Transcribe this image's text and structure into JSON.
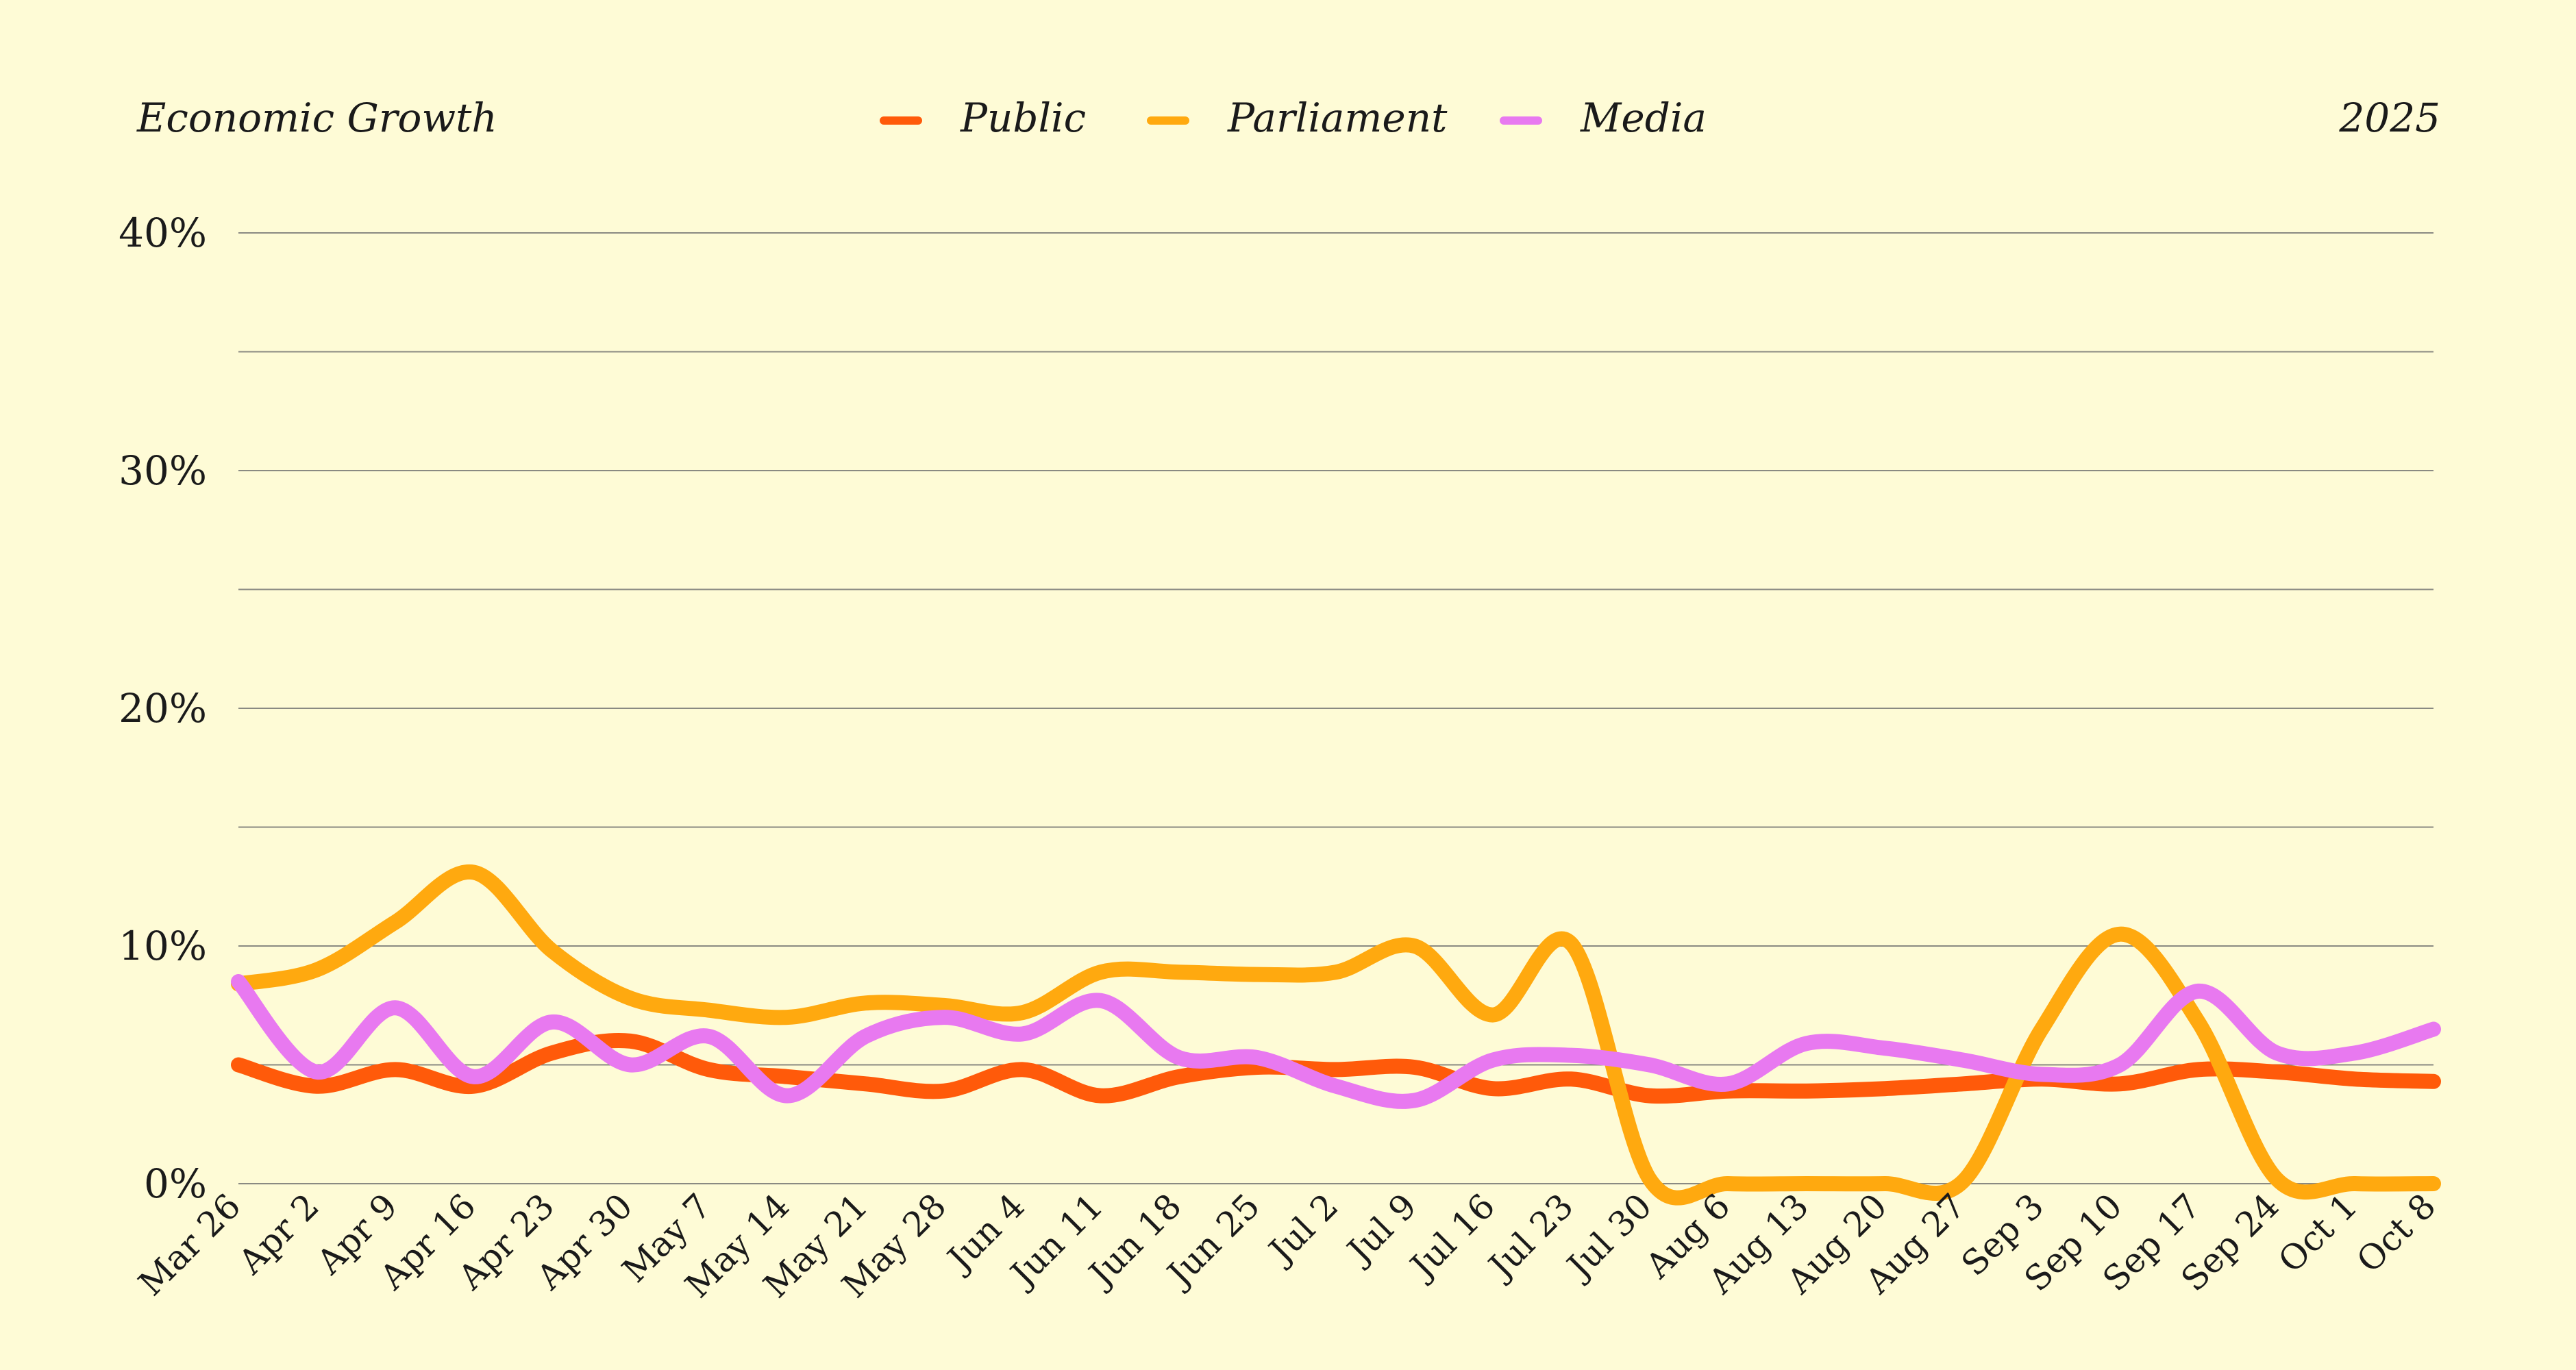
{
  "chart_data": {
    "type": "line",
    "title": "Economic Growth",
    "year_label": "2025",
    "xlabel": "",
    "ylabel": "",
    "ylim": [
      0,
      40
    ],
    "ytick_values": [
      0,
      10,
      20,
      30,
      40
    ],
    "ytick_labels": [
      "0%",
      "10%",
      "20%",
      "30%",
      "40%"
    ],
    "grid": true,
    "grid_step": 5,
    "legend_position": "top-center",
    "categories": [
      "Mar 26",
      "Apr 2",
      "Apr 9",
      "Apr 16",
      "Apr 23",
      "Apr 30",
      "May 7",
      "May 14",
      "May 21",
      "May 28",
      "Jun 4",
      "Jun 11",
      "Jun 18",
      "Jun 25",
      "Jul 2",
      "Jul 9",
      "Jul 16",
      "Jul 23",
      "Jul 30",
      "Aug 6",
      "Aug 13",
      "Aug 20",
      "Aug 27",
      "Sep 3",
      "Sep 10",
      "Sep 17",
      "Sep 24",
      "Oct 1",
      "Oct 8"
    ],
    "series": [
      {
        "name": "Public",
        "color": "#FF5A0A",
        "values": [
          5.0,
          4.1,
          4.8,
          4.1,
          5.5,
          6.0,
          4.8,
          4.5,
          4.2,
          3.9,
          4.8,
          3.7,
          4.5,
          4.9,
          4.8,
          4.9,
          4.0,
          4.4,
          3.7,
          3.9,
          3.9,
          4.0,
          4.2,
          4.4,
          4.2,
          4.8,
          4.7,
          4.4,
          4.3
        ]
      },
      {
        "name": "Parliament",
        "color": "#FFA90F",
        "values": [
          8.4,
          9.0,
          11.0,
          13.1,
          9.8,
          7.8,
          7.3,
          7.0,
          7.6,
          7.5,
          7.2,
          8.9,
          8.9,
          8.8,
          8.9,
          10.0,
          7.1,
          10.1,
          0.2,
          0.0,
          0.0,
          0.0,
          0.1,
          6.5,
          10.5,
          6.8,
          0.2,
          0.0,
          0.0
        ]
      },
      {
        "name": "Media",
        "color": "#E879F0",
        "values": [
          8.5,
          4.7,
          7.4,
          4.5,
          6.8,
          5.0,
          6.2,
          3.7,
          6.2,
          7.0,
          6.3,
          7.7,
          5.3,
          5.3,
          4.1,
          3.5,
          5.2,
          5.4,
          5.0,
          4.2,
          5.9,
          5.7,
          5.2,
          4.6,
          5.0,
          8.1,
          5.5,
          5.5,
          6.5
        ]
      }
    ]
  }
}
